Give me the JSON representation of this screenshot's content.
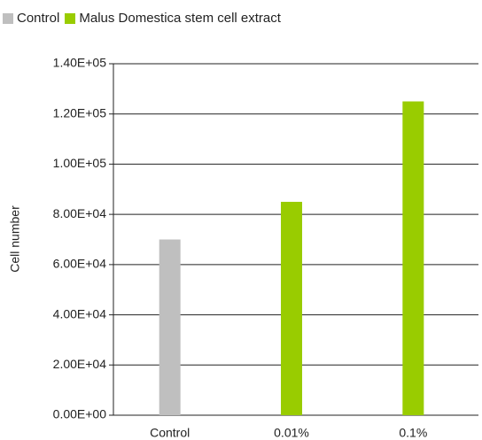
{
  "chart_data": {
    "type": "bar",
    "categories": [
      "Control",
      "0.01%",
      "0.1%"
    ],
    "series": [
      {
        "name": "Control",
        "color": "#bfbfbf",
        "values": [
          70000,
          null,
          null
        ]
      },
      {
        "name": "Malus Domestica stem cell extract",
        "color": "#99cc00",
        "values": [
          null,
          85000,
          125000
        ]
      }
    ],
    "y_label": "Cell number",
    "ylim": [
      0,
      140000
    ],
    "yticks": [
      {
        "value": 0,
        "label": "0.00E+00"
      },
      {
        "value": 20000,
        "label": "2.00E+04"
      },
      {
        "value": 40000,
        "label": "4.00E+04"
      },
      {
        "value": 60000,
        "label": "6.00E+04"
      },
      {
        "value": 80000,
        "label": "8.00E+04"
      },
      {
        "value": 100000,
        "label": "1.00E+05"
      },
      {
        "value": 120000,
        "label": "1.20E+05"
      },
      {
        "value": 140000,
        "label": "1.40E+05"
      }
    ],
    "grid": true
  }
}
